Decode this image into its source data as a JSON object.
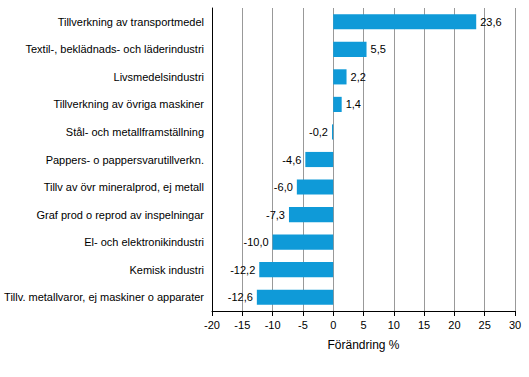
{
  "chart_data": {
    "type": "bar",
    "orientation": "horizontal",
    "categories": [
      "Tillverkning av transportmedel",
      "Textil-, beklädnads- och läderindustri",
      "Livsmedelsindustri",
      "Tillverkning av övriga maskiner",
      "Stål- och metallframställning",
      "Pappers- o pappersvarutillverkn.",
      "Tillv av övr mineralprod, ej metall",
      "Graf prod o reprod av inspelningar",
      "El- och elektronikindustri",
      "Kemisk industri",
      "Tillv. metallvaror, ej maskiner o apparater"
    ],
    "values": [
      23.6,
      5.5,
      2.2,
      1.4,
      -0.2,
      -4.6,
      -6.0,
      -7.3,
      -10.0,
      -12.2,
      -12.6
    ],
    "value_labels": [
      "23,6",
      "5,5",
      "2,2",
      "1,4",
      "-0,2",
      "-4,6",
      "-6,0",
      "-7,3",
      "-10,0",
      "-12,2",
      "-12,6"
    ],
    "color": "#0f9ad8",
    "xlabel": "Förändring %",
    "xlim": [
      -20,
      30
    ],
    "xticks": [
      -20,
      -15,
      -10,
      -5,
      0,
      5,
      10,
      15,
      20,
      25,
      30
    ],
    "grid": true,
    "data_labels": true
  }
}
